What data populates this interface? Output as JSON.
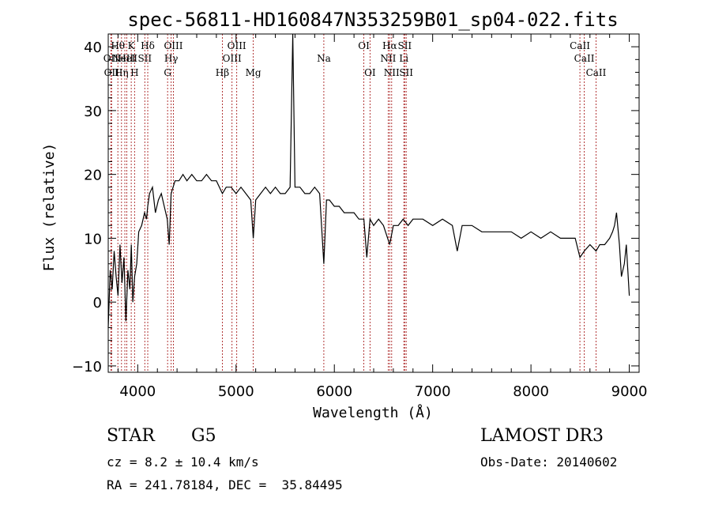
{
  "chart_data": {
    "type": "line",
    "title": "spec-56811-HD160847N353259B01_sp04-022.fits",
    "xlabel": "Wavelength (Å)",
    "ylabel": "Flux (relative)",
    "xlim": [
      3700,
      9100
    ],
    "ylim": [
      -11,
      42
    ],
    "xticks": [
      4000,
      5000,
      6000,
      7000,
      8000,
      9000
    ],
    "yticks": [
      -10,
      0,
      10,
      20,
      30,
      40
    ],
    "grid": false,
    "series": [
      {
        "x": [
          3700,
          3720,
          3740,
          3760,
          3780,
          3800,
          3820,
          3840,
          3860,
          3880,
          3900,
          3920,
          3935,
          3950,
          3968,
          3990,
          4010,
          4040,
          4070,
          4090,
          4102,
          4120,
          4150,
          4180,
          4210,
          4240,
          4270,
          4300,
          4320,
          4340,
          4360,
          4380,
          4420,
          4460,
          4500,
          4550,
          4600,
          4650,
          4700,
          4750,
          4800,
          4861,
          4900,
          4950,
          5000,
          5050,
          5100,
          5150,
          5175,
          5200,
          5250,
          5300,
          5350,
          5400,
          5450,
          5500,
          5550,
          5577,
          5600,
          5650,
          5700,
          5750,
          5800,
          5850,
          5893,
          5920,
          5950,
          6000,
          6050,
          6100,
          6150,
          6200,
          6250,
          6300,
          6330,
          6363,
          6400,
          6450,
          6500,
          6563,
          6600,
          6650,
          6700,
          6750,
          6800,
          6900,
          7000,
          7100,
          7200,
          7250,
          7300,
          7400,
          7500,
          7600,
          7700,
          7800,
          7900,
          8000,
          8100,
          8200,
          8300,
          8400,
          8450,
          8498,
          8542,
          8600,
          8662,
          8700,
          8750,
          8800,
          8830,
          8850,
          8870,
          8900,
          8920,
          8950,
          8970,
          9000
        ],
        "y": [
          -4,
          5,
          2,
          8,
          4,
          1,
          9,
          3,
          7,
          -3,
          5,
          2,
          9,
          0,
          4,
          6,
          11,
          12,
          14,
          13,
          15,
          17,
          18,
          14,
          16,
          17,
          15,
          13,
          9,
          17,
          18,
          19,
          19,
          20,
          19,
          20,
          19,
          19,
          20,
          19,
          19,
          17,
          18,
          18,
          17,
          18,
          17,
          16,
          10,
          16,
          17,
          18,
          17,
          18,
          17,
          17,
          18,
          42,
          18,
          18,
          17,
          17,
          18,
          17,
          6,
          16,
          16,
          15,
          15,
          14,
          14,
          14,
          13,
          13,
          7,
          13,
          12,
          13,
          12,
          9,
          12,
          12,
          13,
          12,
          13,
          13,
          12,
          13,
          12,
          8,
          12,
          12,
          11,
          11,
          11,
          11,
          10,
          11,
          10,
          11,
          10,
          10,
          10,
          7,
          8,
          9,
          8,
          9,
          9,
          10,
          11,
          12,
          14,
          9,
          4,
          6,
          9,
          1
        ]
      }
    ],
    "line_markers": [
      {
        "wavelength": 3727,
        "label": "OII",
        "row": 2
      },
      {
        "wavelength": 3734,
        "label": "OII",
        "row": 3
      },
      {
        "wavelength": 3798,
        "label": "Hθ",
        "row": 1
      },
      {
        "wavelength": 3835,
        "label": "Hη",
        "row": 3
      },
      {
        "wavelength": 3869,
        "label": "NeIII",
        "row": 2
      },
      {
        "wavelength": 3889,
        "label": "HeI",
        "row": 2
      },
      {
        "wavelength": 3934,
        "label": "K",
        "row": 1
      },
      {
        "wavelength": 3968,
        "label": "H",
        "row": 3
      },
      {
        "wavelength": 4072,
        "label": "SII",
        "row": 2
      },
      {
        "wavelength": 4102,
        "label": "Hδ",
        "row": 1
      },
      {
        "wavelength": 4304,
        "label": "G",
        "row": 3
      },
      {
        "wavelength": 4340,
        "label": "Hγ",
        "row": 2
      },
      {
        "wavelength": 4363,
        "label": "OIII",
        "row": 1
      },
      {
        "wavelength": 4861,
        "label": "Hβ",
        "row": 3
      },
      {
        "wavelength": 4959,
        "label": "OIII",
        "row": 2
      },
      {
        "wavelength": 5007,
        "label": "OIII",
        "row": 1
      },
      {
        "wavelength": 5175,
        "label": "Mg",
        "row": 3
      },
      {
        "wavelength": 5893,
        "label": "Na",
        "row": 2
      },
      {
        "wavelength": 6300,
        "label": "OI",
        "row": 1
      },
      {
        "wavelength": 6363,
        "label": "OI",
        "row": 3
      },
      {
        "wavelength": 6548,
        "label": "NII",
        "row": 2
      },
      {
        "wavelength": 6563,
        "label": "Hα",
        "row": 1
      },
      {
        "wavelength": 6583,
        "label": "NII",
        "row": 3
      },
      {
        "wavelength": 6707,
        "label": "Li",
        "row": 2
      },
      {
        "wavelength": 6716,
        "label": "SII",
        "row": 1
      },
      {
        "wavelength": 6731,
        "label": "SII",
        "row": 3
      },
      {
        "wavelength": 8498,
        "label": "CaII",
        "row": 1
      },
      {
        "wavelength": 8542,
        "label": "CaII",
        "row": 2
      },
      {
        "wavelength": 8662,
        "label": "CaII",
        "row": 3
      }
    ]
  },
  "info": {
    "class_label": "STAR",
    "subclass": "G5",
    "survey": "LAMOST DR3",
    "cz": "cz = 8.2 ± 10.4 km/s",
    "obs_date": "Obs-Date: 20140602",
    "coords": "RA = 241.78184, DEC =  35.84495"
  },
  "colors": {
    "marker_line": "#aa2222",
    "spectrum": "#000000"
  }
}
